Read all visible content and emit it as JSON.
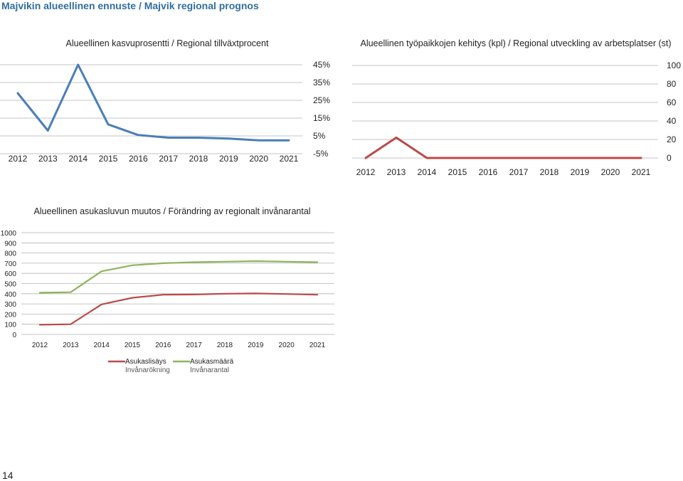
{
  "page": {
    "title": "Majvikin alueellinen ennuste / Majvik regional prognos",
    "number": "14"
  },
  "chart_data": [
    {
      "id": "growth",
      "type": "line",
      "title": "Alueellinen kasvuprosentti / Regional tillväxtprocent",
      "categories": [
        "2012",
        "2013",
        "2014",
        "2015",
        "2016",
        "2017",
        "2018",
        "2019",
        "2020",
        "2021"
      ],
      "series": [
        {
          "values": [
            29,
            8,
            45,
            11.5,
            5.5,
            4,
            4,
            3.5,
            2.5,
            2.5
          ],
          "color": "#4a7eb8"
        }
      ],
      "ylim": [
        -5,
        45
      ],
      "y_ticks": [
        "-5%",
        "5%",
        "15%",
        "25%",
        "35%",
        "45%"
      ],
      "y_tick_values": [
        -5,
        5,
        15,
        25,
        35,
        45
      ],
      "y_axis": "right",
      "grid": true,
      "legend": "none"
    },
    {
      "id": "jobs",
      "type": "line",
      "title": "Alueellinen työpaikkojen kehitys (kpl) / Regional utveckling av arbetsplatser (st)",
      "categories": [
        "2012",
        "2013",
        "2014",
        "2015",
        "2016",
        "2017",
        "2018",
        "2019",
        "2020",
        "2021"
      ],
      "series": [
        {
          "values": [
            0,
            22,
            0,
            0,
            0,
            0,
            0,
            0,
            0,
            0
          ],
          "color": "#b94a48"
        }
      ],
      "ylim": [
        0,
        100
      ],
      "y_ticks": [
        "0",
        "20",
        "40",
        "60",
        "80",
        "100"
      ],
      "y_tick_values": [
        0,
        20,
        40,
        60,
        80,
        100
      ],
      "y_axis": "right",
      "grid": true,
      "legend": "none"
    },
    {
      "id": "population",
      "type": "line",
      "title": "Alueellinen asukasluvun muutos / Förändring av regionalt invånarantal",
      "categories": [
        "2012",
        "2013",
        "2014",
        "2015",
        "2016",
        "2017",
        "2018",
        "2019",
        "2020",
        "2021"
      ],
      "series": [
        {
          "name": "Asukaslisäys",
          "name2": "Invånarökning",
          "values": [
            95,
            100,
            295,
            360,
            390,
            392,
            400,
            403,
            397,
            390
          ],
          "color": "#b94a48"
        },
        {
          "name": "Asukasmäärä",
          "name2": "Invånarantal",
          "values": [
            410,
            415,
            620,
            680,
            700,
            710,
            715,
            720,
            715,
            710
          ],
          "color": "#8db55a"
        }
      ],
      "ylim": [
        0,
        1000
      ],
      "y_ticks": [
        "0",
        "100",
        "200",
        "300",
        "400",
        "500",
        "600",
        "700",
        "800",
        "900",
        "1000"
      ],
      "y_tick_values": [
        0,
        100,
        200,
        300,
        400,
        500,
        600,
        700,
        800,
        900,
        1000
      ],
      "y_axis": "left",
      "grid": true,
      "legend": "bottom"
    }
  ]
}
